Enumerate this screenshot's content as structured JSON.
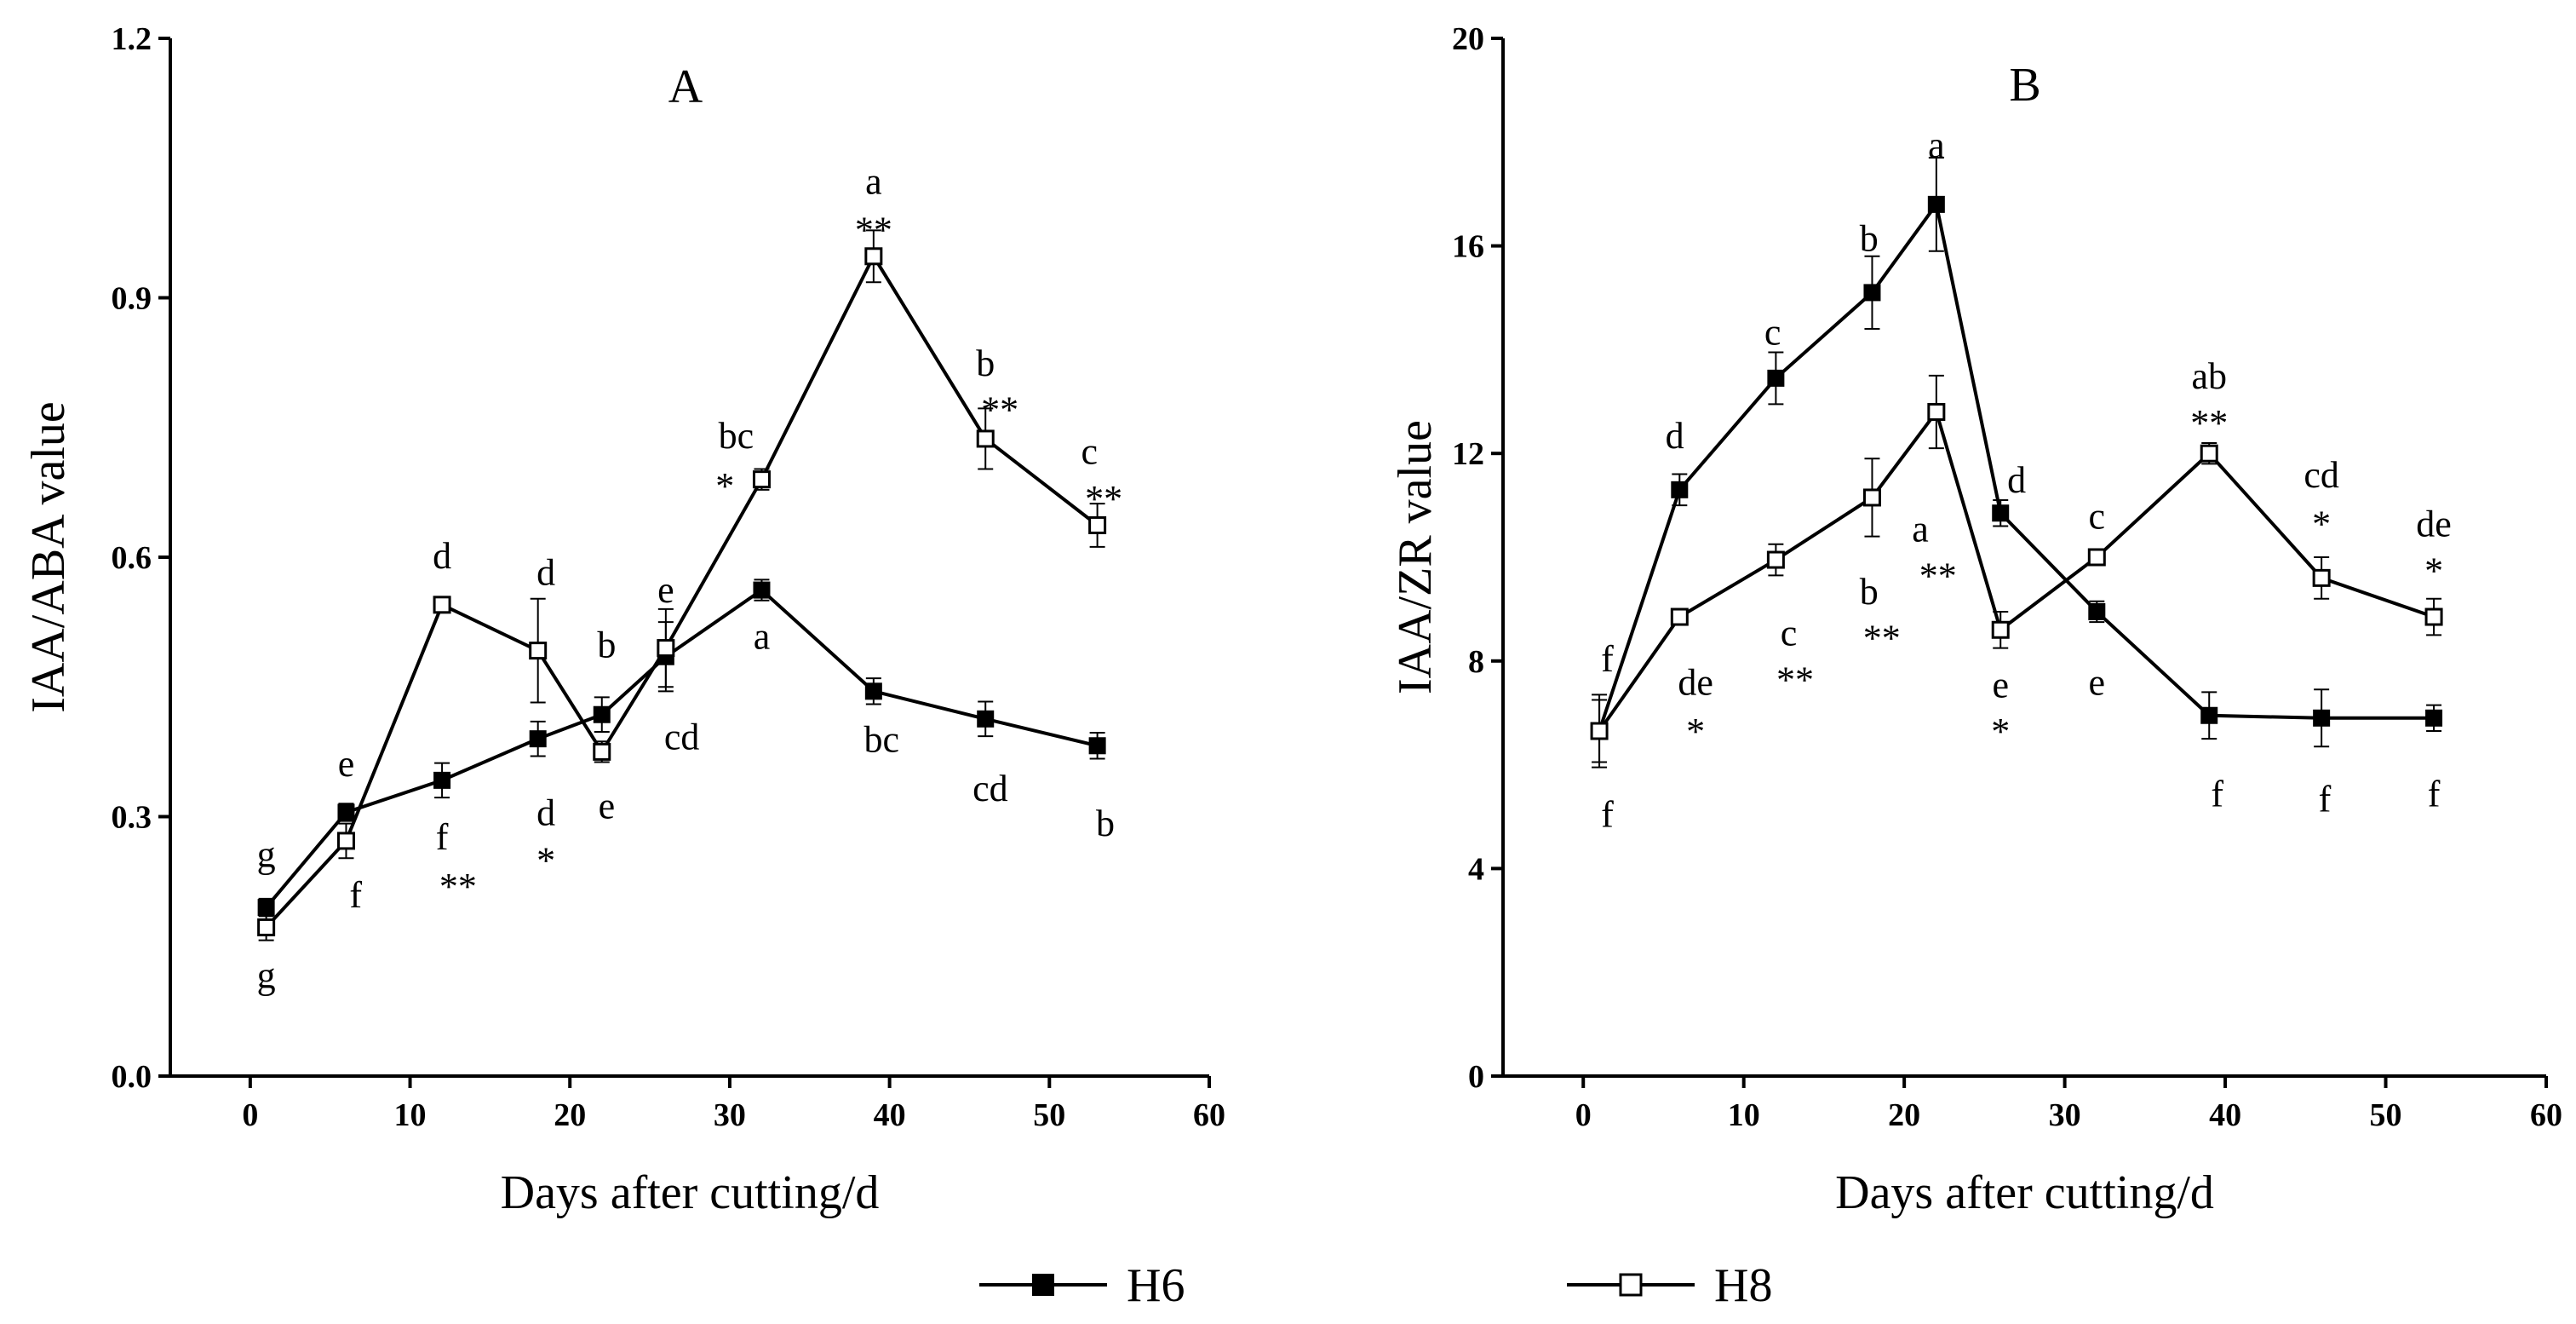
{
  "figure": {
    "legend": [
      {
        "name": "H6",
        "marker": "filled-square"
      },
      {
        "name": "H8",
        "marker": "open-square"
      }
    ]
  },
  "chart_data": [
    {
      "type": "line",
      "title": "A",
      "xlabel": "Days after cutting/d",
      "ylabel": "IAA/ABA value",
      "xlim": [
        -5,
        60
      ],
      "ylim": [
        0,
        1.2
      ],
      "xticks": [
        "0",
        "10",
        "20",
        "30",
        "40",
        "50",
        "60"
      ],
      "xtick_values": [
        0,
        10,
        20,
        30,
        40,
        50,
        60
      ],
      "yticks": [
        "0.0",
        "0.3",
        "0.6",
        "0.9",
        "1.2"
      ],
      "ytick_values": [
        0,
        0.3,
        0.6,
        0.9,
        1.2
      ],
      "series": [
        {
          "name": "H6",
          "marker": "filled-square",
          "x": [
            1,
            6,
            12,
            18,
            22,
            26,
            32,
            39,
            46,
            53
          ],
          "values": [
            0.195,
            0.305,
            0.342,
            0.39,
            0.418,
            0.485,
            0.562,
            0.445,
            0.413,
            0.382
          ],
          "error": [
            0.01,
            0.01,
            0.02,
            0.02,
            0.02,
            0.04,
            0.012,
            0.015,
            0.02,
            0.015
          ]
        },
        {
          "name": "H8",
          "marker": "open-square",
          "x": [
            1,
            6,
            12,
            18,
            22,
            26,
            32,
            39,
            46,
            53
          ],
          "values": [
            0.172,
            0.272,
            0.545,
            0.492,
            0.375,
            0.495,
            0.69,
            0.948,
            0.737,
            0.637
          ],
          "error": [
            0.015,
            0.02,
            0.008,
            0.06,
            0.012,
            0.045,
            0.012,
            0.03,
            0.035,
            0.025
          ]
        }
      ],
      "annotations": [
        {
          "text": "g",
          "x": 1,
          "y": 0.242
        },
        {
          "text": "g",
          "x": 1,
          "y": 0.102
        },
        {
          "text": "e",
          "x": 6,
          "y": 0.347
        },
        {
          "text": "f",
          "x": 6.6,
          "y": 0.195
        },
        {
          "text": "d",
          "x": 12,
          "y": 0.587
        },
        {
          "text": "f",
          "x": 12,
          "y": 0.262
        },
        {
          "text": "**",
          "x": 13,
          "y": 0.205
        },
        {
          "text": "d",
          "x": 18.5,
          "y": 0.568
        },
        {
          "text": "d",
          "x": 18.5,
          "y": 0.29
        },
        {
          "text": "*",
          "x": 18.5,
          "y": 0.235
        },
        {
          "text": "b",
          "x": 22.3,
          "y": 0.484
        },
        {
          "text": "e",
          "x": 22.3,
          "y": 0.298
        },
        {
          "text": "e",
          "x": 26,
          "y": 0.548
        },
        {
          "text": "cd",
          "x": 27,
          "y": 0.378
        },
        {
          "text": "bc",
          "x": 30.4,
          "y": 0.726
        },
        {
          "text": "*",
          "x": 29.7,
          "y": 0.668
        },
        {
          "text": "a",
          "x": 32,
          "y": 0.494
        },
        {
          "text": "a",
          "x": 39,
          "y": 1.02
        },
        {
          "text": "**",
          "x": 39,
          "y": 0.964
        },
        {
          "text": "bc",
          "x": 39.5,
          "y": 0.375
        },
        {
          "text": "b",
          "x": 46,
          "y": 0.81
        },
        {
          "text": "**",
          "x": 46.9,
          "y": 0.756
        },
        {
          "text": "cd",
          "x": 46.3,
          "y": 0.318
        },
        {
          "text": "c",
          "x": 52.5,
          "y": 0.708
        },
        {
          "text": "**",
          "x": 53.4,
          "y": 0.653
        },
        {
          "text": "b",
          "x": 53.5,
          "y": 0.278
        }
      ]
    },
    {
      "type": "line",
      "title": "B",
      "xlabel": "Days after cutting/d",
      "ylabel": "IAA/ZR value",
      "xlim": [
        -5,
        60
      ],
      "ylim": [
        0,
        20
      ],
      "xticks": [
        "0",
        "10",
        "20",
        "30",
        "40",
        "50",
        "60"
      ],
      "xtick_values": [
        0,
        10,
        20,
        30,
        40,
        50,
        60
      ],
      "yticks": [
        "0",
        "4",
        "8",
        "12",
        "16",
        "20"
      ],
      "ytick_values": [
        0,
        4,
        8,
        12,
        16,
        20
      ],
      "series": [
        {
          "name": "H6",
          "marker": "filled-square",
          "x": [
            1,
            6,
            12,
            18,
            22,
            26,
            32,
            39,
            46,
            53
          ],
          "values": [
            6.65,
            11.3,
            13.45,
            15.1,
            16.8,
            10.85,
            8.95,
            6.95,
            6.9,
            6.9
          ],
          "error": [
            0.6,
            0.3,
            0.5,
            0.7,
            0.9,
            0.25,
            0.2,
            0.45,
            0.55,
            0.25
          ]
        },
        {
          "name": "H8",
          "marker": "open-square",
          "x": [
            1,
            6,
            12,
            18,
            22,
            26,
            32,
            39,
            46,
            53
          ],
          "values": [
            6.65,
            8.85,
            9.95,
            11.15,
            12.8,
            8.6,
            10.0,
            12.0,
            9.6,
            8.85
          ],
          "error": [
            0.7,
            0.15,
            0.3,
            0.75,
            0.7,
            0.35,
            0.1,
            0.2,
            0.4,
            0.35
          ]
        }
      ],
      "annotations": [
        {
          "text": "f",
          "x": 1.5,
          "y": 7.8
        },
        {
          "text": "f",
          "x": 1.5,
          "y": 4.8
        },
        {
          "text": "d",
          "x": 5.7,
          "y": 12.1
        },
        {
          "text": "de",
          "x": 7,
          "y": 7.35
        },
        {
          "text": "*",
          "x": 7,
          "y": 6.4
        },
        {
          "text": "c",
          "x": 11.8,
          "y": 14.1
        },
        {
          "text": "c",
          "x": 12.8,
          "y": 8.3
        },
        {
          "text": "**",
          "x": 13.2,
          "y": 7.4
        },
        {
          "text": "b",
          "x": 17.8,
          "y": 15.9
        },
        {
          "text": "b",
          "x": 17.8,
          "y": 9.1
        },
        {
          "text": "**",
          "x": 18.6,
          "y": 8.2
        },
        {
          "text": "a",
          "x": 22,
          "y": 17.7
        },
        {
          "text": "a",
          "x": 21,
          "y": 10.3
        },
        {
          "text": "**",
          "x": 22.1,
          "y": 9.4
        },
        {
          "text": "d",
          "x": 27,
          "y": 11.25
        },
        {
          "text": "e",
          "x": 26,
          "y": 7.3
        },
        {
          "text": "*",
          "x": 26,
          "y": 6.4
        },
        {
          "text": "c",
          "x": 32,
          "y": 10.55
        },
        {
          "text": "e",
          "x": 32,
          "y": 7.35
        },
        {
          "text": "ab",
          "x": 39,
          "y": 13.25
        },
        {
          "text": "**",
          "x": 39,
          "y": 12.35
        },
        {
          "text": "f",
          "x": 39.5,
          "y": 5.2
        },
        {
          "text": "cd",
          "x": 46,
          "y": 11.35
        },
        {
          "text": "*",
          "x": 46,
          "y": 10.4
        },
        {
          "text": "f",
          "x": 46.2,
          "y": 5.1
        },
        {
          "text": "de",
          "x": 53,
          "y": 10.4
        },
        {
          "text": "*",
          "x": 53,
          "y": 9.5
        },
        {
          "text": "f",
          "x": 53,
          "y": 5.2
        }
      ]
    }
  ]
}
